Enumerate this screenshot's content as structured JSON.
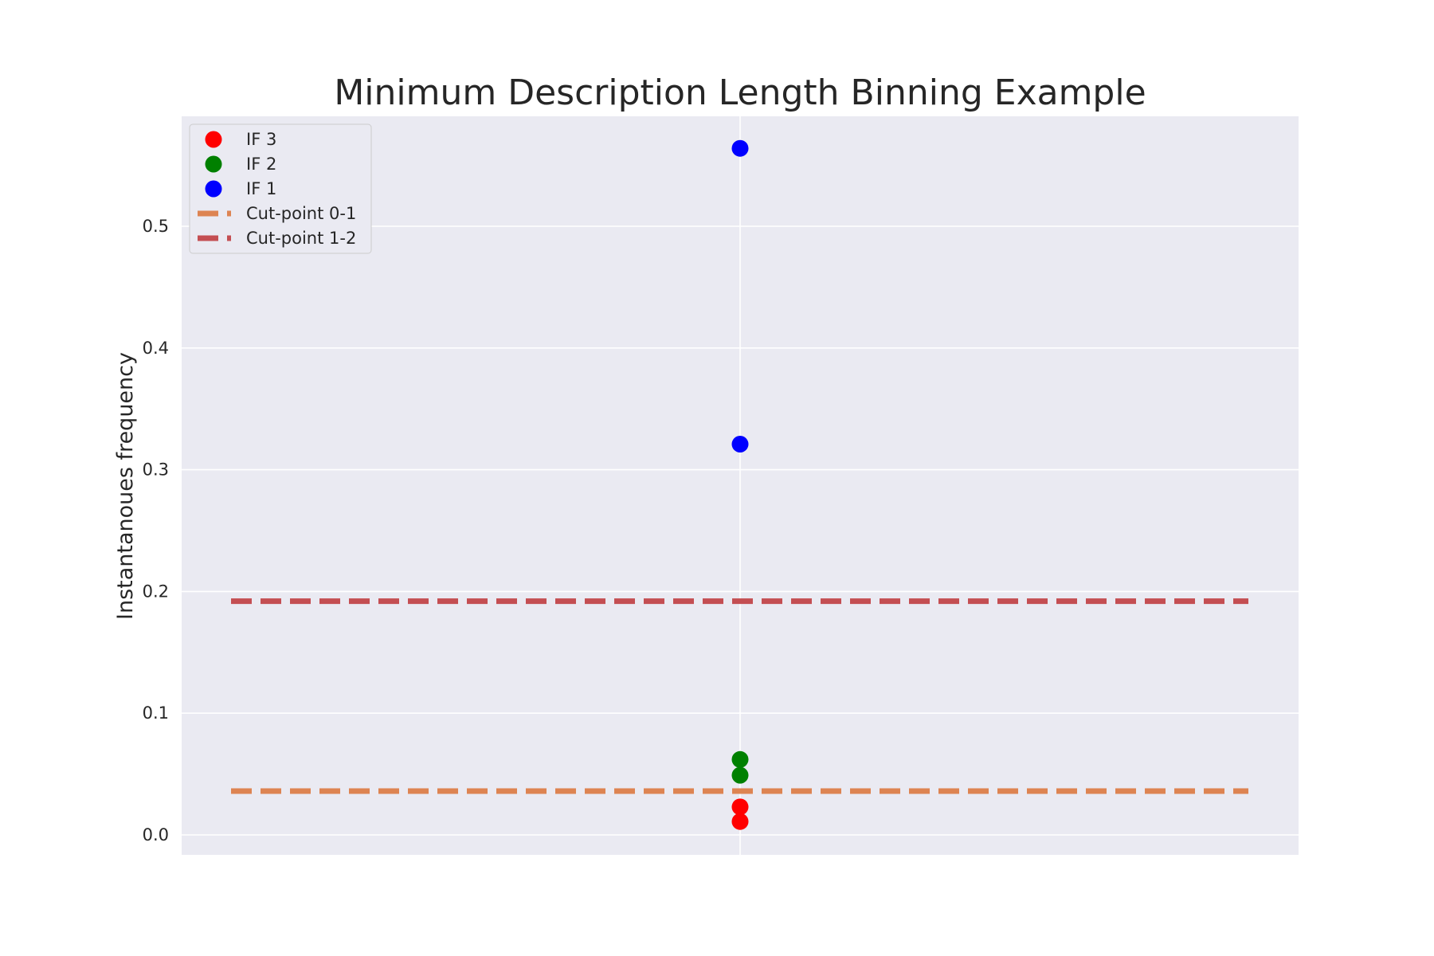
{
  "chart_data": {
    "type": "scatter",
    "title": "Minimum Description Length Binning Example",
    "xlabel": "",
    "ylabel": "Instantanoues frequency",
    "ylim": [
      -0.015,
      0.59
    ],
    "yticks": [
      0.0,
      0.1,
      0.2,
      0.3,
      0.4,
      0.5
    ],
    "ytick_labels": [
      "0.0",
      "0.1",
      "0.2",
      "0.3",
      "0.4",
      "0.5"
    ],
    "xticks": [
      0
    ],
    "grid": true,
    "legend_position": "top-left",
    "series": [
      {
        "name": "IF 3",
        "kind": "points",
        "color": "#ff0000",
        "x": [
          0,
          0
        ],
        "y": [
          0.011,
          0.023
        ]
      },
      {
        "name": "IF 2",
        "kind": "points",
        "color": "#008000",
        "x": [
          0,
          0
        ],
        "y": [
          0.049,
          0.062
        ]
      },
      {
        "name": "IF 1",
        "kind": "points",
        "color": "#0000ff",
        "x": [
          0,
          0
        ],
        "y": [
          0.321,
          0.564
        ]
      },
      {
        "name": "Cut-point 0-1",
        "kind": "hline",
        "color": "#dd8452",
        "y": 0.036
      },
      {
        "name": "Cut-point 1-2",
        "kind": "hline",
        "color": "#c44e52",
        "y": 0.192
      }
    ]
  }
}
